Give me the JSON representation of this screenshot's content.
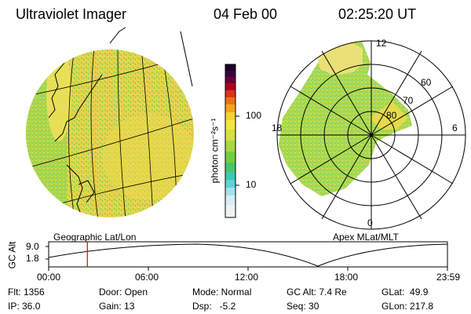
{
  "header": {
    "title": "Ultraviolet Imager",
    "date": "04 Feb 00",
    "time": "02:25:20 UT"
  },
  "panels": {
    "left_label": "Geographic Lat/Lon",
    "right_label": "Apex MLat/MLT"
  },
  "colorbar": {
    "unit_label": "photon cm⁻²s⁻¹",
    "tick_100": "100",
    "tick_10": "10"
  },
  "polar": {
    "mlt_12": "12",
    "mlt_18": "18",
    "mlt_6": "6",
    "mlt_0": "0",
    "lat_60": "60",
    "lat_70": "70",
    "lat_80": "80"
  },
  "orbit": {
    "ylabel": "GC Alt",
    "ytick_top": "9.0",
    "ytick_bottom": "1.8",
    "xticks": [
      "00:00",
      "06:00",
      "12:00",
      "18:00",
      "23:59"
    ],
    "current_time_fraction": 0.097
  },
  "info": {
    "flt": "Flt: 1356",
    "ip": "IP: 36.0",
    "door": "Door: Open",
    "gain": "Gain: 13",
    "mode": "Mode: Normal",
    "dsp": "Dsp:   -5.2",
    "gc_alt": "GC Alt: 7.4 Re",
    "seq": "Seq: 30",
    "glat": "GLat:  49.9",
    "glon": "GLon: 217.8"
  },
  "colors": {
    "accent_marker": "#e00000",
    "aurora_yellow": "#f2dc3c",
    "aurora_green": "#7fd13a",
    "aurora_cyan": "#3cc9c9"
  }
}
